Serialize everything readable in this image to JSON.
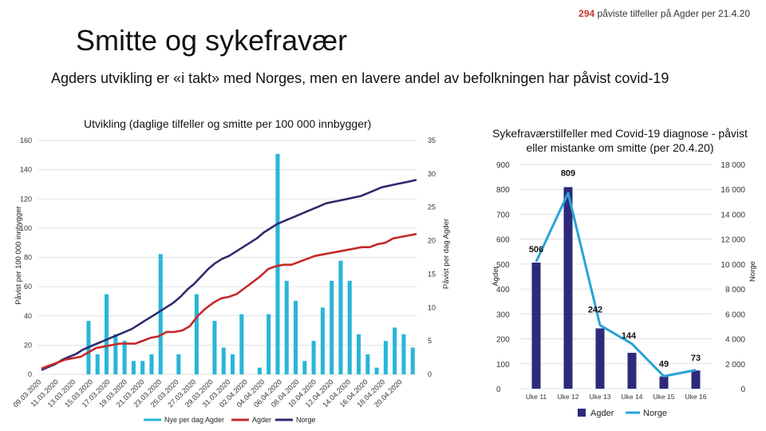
{
  "header": {
    "count": "294",
    "note": "påviste tilfeller på Agder per 21.4.20"
  },
  "title": "Smitte og sykefravær",
  "subtitle": "Agders utvikling er «i takt» med Norges, men en lavere andel av befolkningen har påvist covid-19",
  "chart_data": [
    {
      "type": "line+bar",
      "title": "Utvikling (daglige tilfeller og smitte per 100 000 innbygger)",
      "ylabel_left": "Påvist per 100 000 innbygger",
      "ylabel_right": "Påvist per dag Agder",
      "ylim_left": [
        0,
        160
      ],
      "yticks_left": [
        0,
        20,
        40,
        60,
        80,
        100,
        120,
        140,
        160
      ],
      "ylim_right": [
        0,
        35
      ],
      "yticks_right": [
        0,
        5,
        10,
        15,
        20,
        25,
        30,
        35
      ],
      "x_labels": [
        "09.03.2020",
        "11.03.2020",
        "13.03.2020",
        "15.03.2020",
        "17.03.2020",
        "19.03.2020",
        "21.03.2020",
        "23.03.2020",
        "25.03.2020",
        "27.03.2020",
        "29.03.2020",
        "31.03.2020",
        "02.04.2020",
        "04.04.2020",
        "06.04.2020",
        "08.04.2020",
        "10.04.2020",
        "12.04.2020",
        "14.04.2020",
        "16.04.2020",
        "18.04.2020",
        "20.04.2020"
      ],
      "legend": [
        "Nye per dag Agder",
        "Agder",
        "Norge"
      ],
      "series": [
        {
          "name": "Nye per dag Agder",
          "kind": "bar",
          "axis": "right",
          "values": [
            0,
            0,
            0,
            0,
            0,
            8,
            3,
            12,
            6,
            5,
            2,
            2,
            3,
            18,
            0,
            3,
            0,
            12,
            0,
            8,
            4,
            3,
            9,
            0,
            1,
            9,
            33,
            14,
            11,
            2,
            5,
            10,
            14,
            17,
            14,
            6,
            3,
            1,
            5,
            7,
            6,
            4
          ]
        },
        {
          "name": "Agder",
          "kind": "line",
          "axis": "left",
          "values": [
            4,
            6,
            8,
            10,
            11,
            12,
            15,
            18,
            19,
            20,
            21,
            21,
            21,
            23,
            25,
            26,
            29,
            29,
            30,
            33,
            40,
            45,
            49,
            52,
            53,
            55,
            59,
            63,
            67,
            72,
            74,
            75,
            75,
            77,
            79,
            81,
            82,
            83,
            84,
            85,
            86,
            87,
            87,
            89,
            90,
            93,
            94,
            95,
            96
          ]
        },
        {
          "name": "Norge",
          "kind": "line",
          "axis": "left",
          "values": [
            3,
            5,
            7,
            10,
            12,
            14,
            17,
            19,
            21,
            23,
            25,
            27,
            29,
            31,
            34,
            37,
            40,
            43,
            46,
            49,
            53,
            58,
            62,
            67,
            72,
            76,
            79,
            81,
            84,
            87,
            90,
            93,
            97,
            100,
            103,
            105,
            107,
            109,
            111,
            113,
            115,
            117,
            118,
            119,
            120,
            121,
            122,
            124,
            126,
            128,
            129,
            130,
            131,
            132,
            133
          ]
        }
      ]
    },
    {
      "type": "bar+line",
      "title": "Sykefraværstilfeller med Covid-19 diagnose - påvist eller mistanke om smitte (per 20.4.20)",
      "ylabel_left": "Agder",
      "ylabel_right": "Norge",
      "categories": [
        "Uke 11",
        "Uke 12",
        "Uke 13",
        "Uke 14",
        "Uke 15",
        "Uke 16"
      ],
      "ylim_left": [
        0,
        900
      ],
      "yticks_left": [
        0,
        100,
        200,
        300,
        400,
        500,
        600,
        700,
        800,
        900
      ],
      "yticks_left_labels": [
        "0",
        "100",
        "200",
        "300",
        "400",
        "500",
        "600",
        "700",
        "800",
        "900"
      ],
      "ylim_right": [
        0,
        18000
      ],
      "yticks_right": [
        0,
        2000,
        4000,
        6000,
        8000,
        10000,
        12000,
        14000,
        16000,
        18000
      ],
      "yticks_right_labels": [
        "0",
        "2 000",
        "4 000",
        "6 000",
        "8 000",
        "10 000",
        "12 000",
        "14 000",
        "16 000",
        "18 000"
      ],
      "legend": [
        "Agder",
        "Norge"
      ],
      "data_labels": [
        "506",
        "809",
        "242",
        "144",
        "49",
        "73"
      ],
      "series": [
        {
          "name": "Agder",
          "kind": "bar",
          "axis": "left",
          "values": [
            506,
            809,
            242,
            144,
            49,
            73
          ]
        },
        {
          "name": "Norge",
          "kind": "line",
          "axis": "right",
          "values": [
            10200,
            15700,
            5100,
            3600,
            1000,
            1500
          ]
        }
      ]
    }
  ],
  "colors": {
    "bars_left": "#29b6d8",
    "agder_line": "#c62828",
    "norge_line": "#2f2a6e",
    "bars_right": "#2e2a7a",
    "norge_line_right": "#29a3d6",
    "grid": "#d9d9d9",
    "highlight": "#c0392b"
  }
}
